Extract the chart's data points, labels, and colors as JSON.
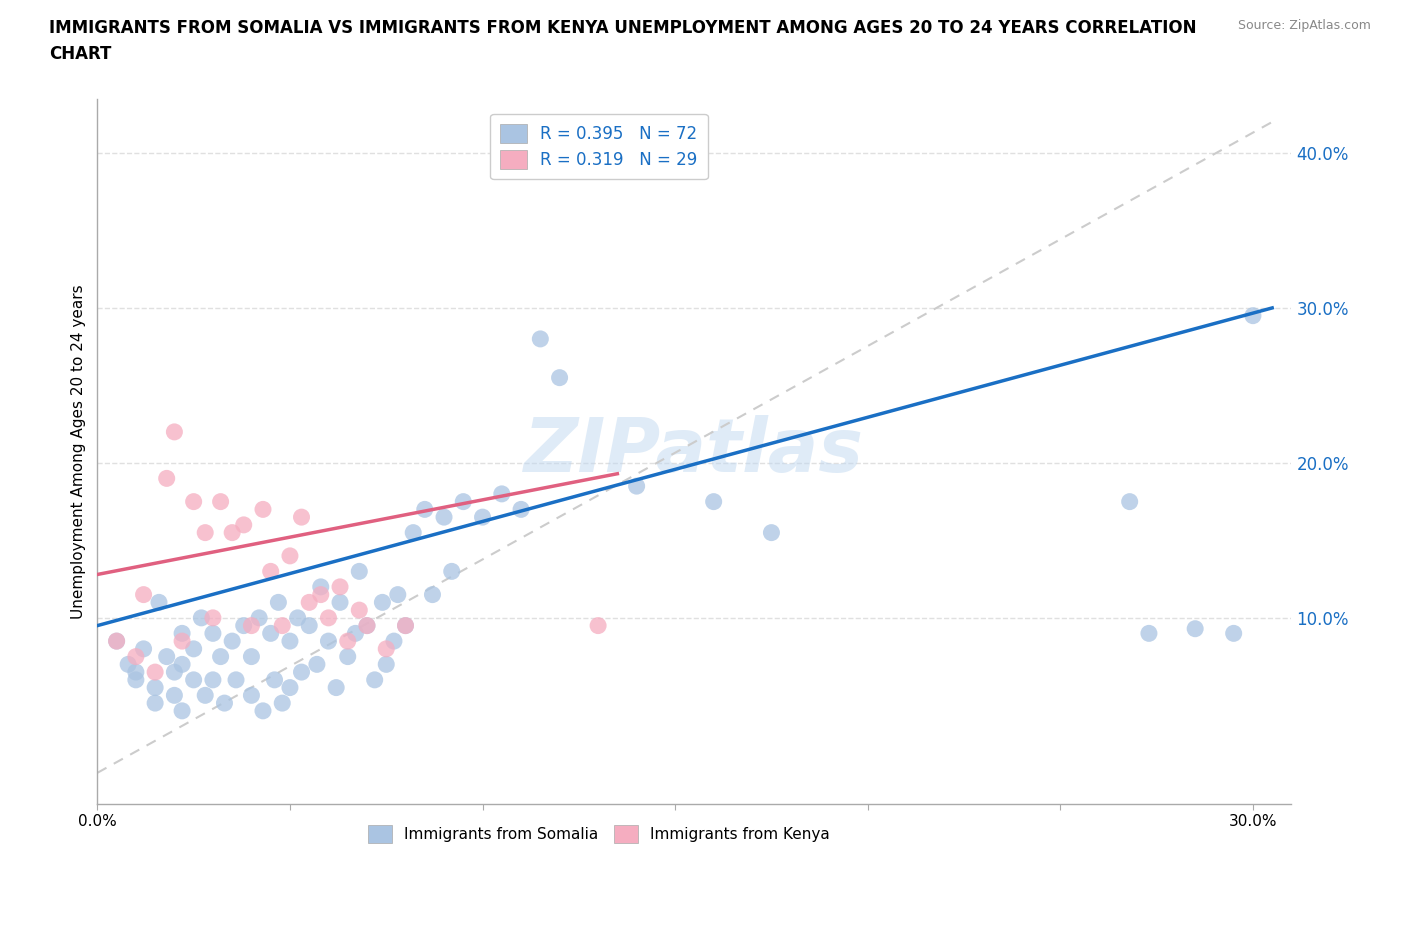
{
  "title_line1": "IMMIGRANTS FROM SOMALIA VS IMMIGRANTS FROM KENYA UNEMPLOYMENT AMONG AGES 20 TO 24 YEARS CORRELATION",
  "title_line2": "CHART",
  "ylabel": "Unemployment Among Ages 20 to 24 years",
  "source": "Source: ZipAtlas.com",
  "watermark": "ZIPatlas",
  "xlim": [
    0.0,
    0.31
  ],
  "ylim": [
    -0.02,
    0.435
  ],
  "ytick_vals": [
    0.1,
    0.2,
    0.3,
    0.4
  ],
  "ytick_labels": [
    "10.0%",
    "20.0%",
    "30.0%",
    "40.0%"
  ],
  "xtick_vals": [
    0.0,
    0.05,
    0.1,
    0.15,
    0.2,
    0.25,
    0.3
  ],
  "xtick_labels": [
    "0.0%",
    "",
    "",
    "",
    "",
    "",
    "30.0%"
  ],
  "somalia_color": "#aac4e2",
  "kenya_color": "#f5adc0",
  "somalia_R": 0.395,
  "somalia_N": 72,
  "kenya_R": 0.319,
  "kenya_N": 29,
  "somalia_line_color": "#1a6fc4",
  "kenya_line_color": "#e06080",
  "diagonal_color": "#cccccc",
  "background_color": "#ffffff",
  "grid_color": "#e0e0e0",
  "somalia_x": [
    0.005,
    0.008,
    0.01,
    0.01,
    0.012,
    0.015,
    0.015,
    0.016,
    0.018,
    0.02,
    0.02,
    0.022,
    0.022,
    0.022,
    0.025,
    0.025,
    0.027,
    0.028,
    0.03,
    0.03,
    0.032,
    0.033,
    0.035,
    0.036,
    0.038,
    0.04,
    0.04,
    0.042,
    0.043,
    0.045,
    0.046,
    0.047,
    0.048,
    0.05,
    0.05,
    0.052,
    0.053,
    0.055,
    0.057,
    0.058,
    0.06,
    0.062,
    0.063,
    0.065,
    0.067,
    0.068,
    0.07,
    0.072,
    0.074,
    0.075,
    0.077,
    0.078,
    0.08,
    0.082,
    0.085,
    0.087,
    0.09,
    0.092,
    0.095,
    0.1,
    0.105,
    0.11,
    0.115,
    0.12,
    0.14,
    0.16,
    0.175,
    0.268,
    0.273,
    0.285,
    0.295,
    0.3
  ],
  "somalia_y": [
    0.085,
    0.07,
    0.065,
    0.06,
    0.08,
    0.055,
    0.045,
    0.11,
    0.075,
    0.065,
    0.05,
    0.09,
    0.07,
    0.04,
    0.08,
    0.06,
    0.1,
    0.05,
    0.09,
    0.06,
    0.075,
    0.045,
    0.085,
    0.06,
    0.095,
    0.075,
    0.05,
    0.1,
    0.04,
    0.09,
    0.06,
    0.11,
    0.045,
    0.085,
    0.055,
    0.1,
    0.065,
    0.095,
    0.07,
    0.12,
    0.085,
    0.055,
    0.11,
    0.075,
    0.09,
    0.13,
    0.095,
    0.06,
    0.11,
    0.07,
    0.085,
    0.115,
    0.095,
    0.155,
    0.17,
    0.115,
    0.165,
    0.13,
    0.175,
    0.165,
    0.18,
    0.17,
    0.28,
    0.255,
    0.185,
    0.175,
    0.155,
    0.175,
    0.09,
    0.093,
    0.09,
    0.295
  ],
  "kenya_x": [
    0.005,
    0.01,
    0.012,
    0.015,
    0.018,
    0.02,
    0.022,
    0.025,
    0.028,
    0.03,
    0.032,
    0.035,
    0.038,
    0.04,
    0.043,
    0.045,
    0.048,
    0.05,
    0.053,
    0.055,
    0.058,
    0.06,
    0.063,
    0.065,
    0.068,
    0.07,
    0.075,
    0.08,
    0.13
  ],
  "kenya_y": [
    0.085,
    0.075,
    0.115,
    0.065,
    0.19,
    0.22,
    0.085,
    0.175,
    0.155,
    0.1,
    0.175,
    0.155,
    0.16,
    0.095,
    0.17,
    0.13,
    0.095,
    0.14,
    0.165,
    0.11,
    0.115,
    0.1,
    0.12,
    0.085,
    0.105,
    0.095,
    0.08,
    0.095,
    0.095
  ]
}
